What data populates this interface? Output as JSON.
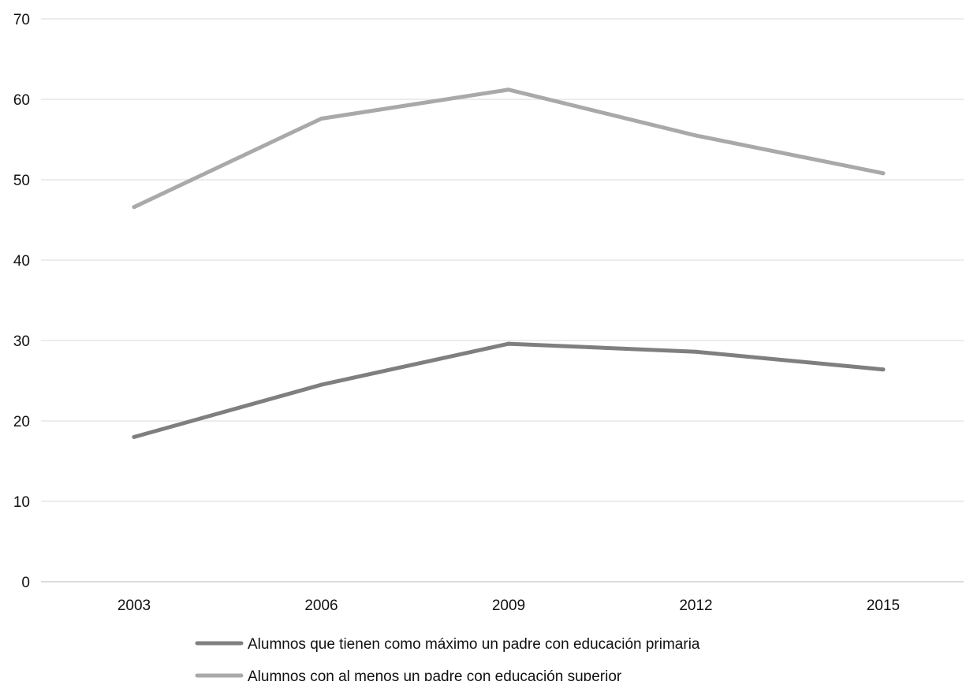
{
  "chart_data": {
    "type": "line",
    "title": "",
    "xlabel": "",
    "ylabel": "",
    "categories": [
      "2003",
      "2006",
      "2009",
      "2012",
      "2015"
    ],
    "ylim": [
      0,
      70
    ],
    "yticks": [
      "0",
      "10",
      "20",
      "30",
      "40",
      "50",
      "60",
      "70"
    ],
    "grid": true,
    "legend_position": "bottom",
    "series": [
      {
        "name": "Alumnos que tienen como máximo un padre con educación primaria",
        "values": [
          18.0,
          24.5,
          29.6,
          28.6,
          26.4
        ],
        "color": "#7f7f7f"
      },
      {
        "name": "Alumnos con al menos un padre con educación superior",
        "values": [
          46.6,
          57.6,
          61.2,
          55.5,
          50.8
        ],
        "color": "#a9a9a9"
      }
    ]
  }
}
